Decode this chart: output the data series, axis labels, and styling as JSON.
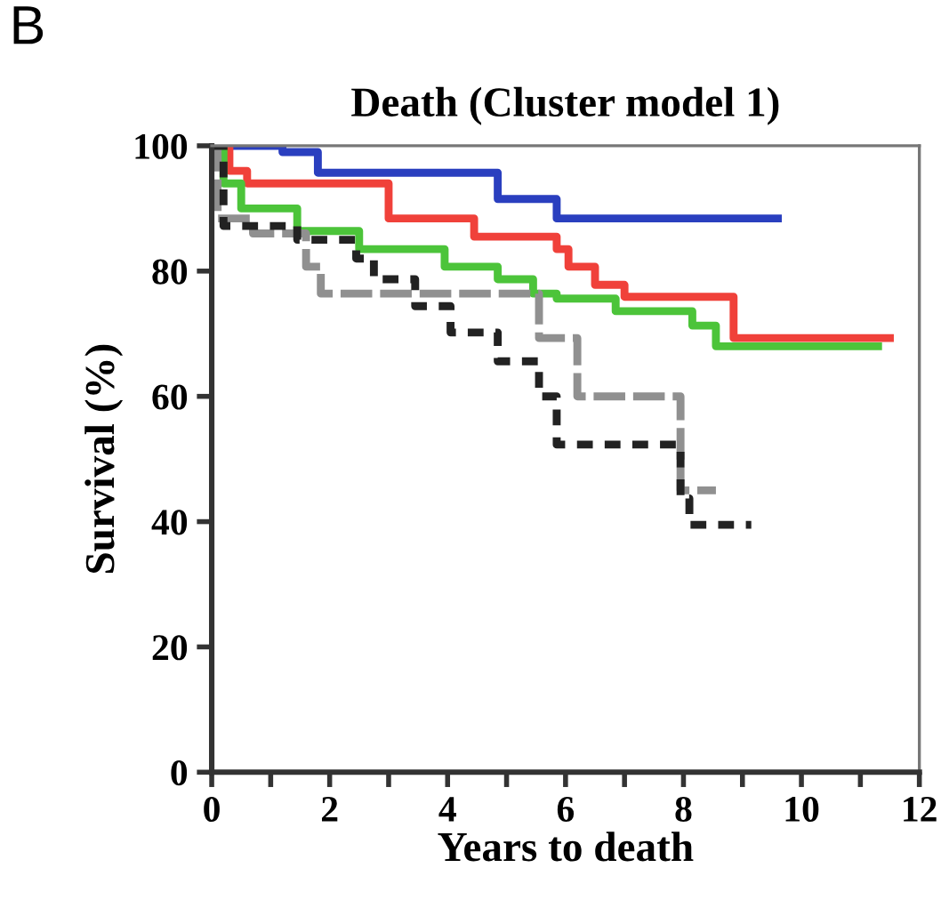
{
  "chart_data": {
    "type": "step",
    "title": "Death (Cluster model 1)",
    "xlabel": "Years to death",
    "ylabel": "Survival (%)",
    "annotations": [
      "B"
    ],
    "xlim": [
      0,
      12
    ],
    "ylim": [
      0,
      100
    ],
    "xticks": [
      0,
      {
        "value": 1,
        "label": null
      },
      2,
      {
        "value": 3,
        "label": null
      },
      4,
      {
        "value": 5,
        "label": null
      },
      6,
      {
        "value": 7,
        "label": null
      },
      8,
      {
        "value": 9,
        "label": null
      },
      10,
      {
        "value": 11,
        "label": null
      },
      12
    ],
    "yticks": [
      0,
      20,
      40,
      60,
      80,
      100
    ],
    "grid": false,
    "legend": false,
    "marker": "none",
    "series": [
      {
        "color": "#2a3fbf",
        "line_style": "solid",
        "x": [
          0,
          1.2,
          1.8,
          4.85,
          5.85,
          9.6
        ],
        "values": [
          100,
          99,
          95.7,
          91.5,
          88.4,
          88.4
        ]
      },
      {
        "color": "#f0413a",
        "line_style": "solid",
        "x": [
          0,
          0.3,
          0.6,
          3.0,
          4.45,
          5.85,
          6.05,
          6.5,
          7.0,
          8.85,
          11.5
        ],
        "values": [
          100,
          96,
          94,
          88.4,
          85.5,
          83.5,
          80.7,
          77.8,
          75.9,
          69.3,
          69.3
        ]
      },
      {
        "color": "#4cc43a",
        "line_style": "solid",
        "x": [
          0,
          0.2,
          0.5,
          1.45,
          2.5,
          3.95,
          4.85,
          5.45,
          5.85,
          6.85,
          8.15,
          8.55,
          11.3
        ],
        "values": [
          100,
          94,
          90,
          86.4,
          83.5,
          80.7,
          78.7,
          76.4,
          75.6,
          73.6,
          71.3,
          68,
          68
        ]
      },
      {
        "color": "#909090",
        "line_style": "dashed",
        "x": [
          0,
          0.1,
          0.7,
          1.6,
          1.85,
          5.55,
          6.2,
          7.95,
          8.55
        ],
        "values": [
          100,
          88.4,
          86,
          80.7,
          76.4,
          69.3,
          60,
          45,
          45
        ]
      },
      {
        "color": "#222222",
        "line_style": "dotted",
        "x": [
          0,
          0.2,
          1.45,
          2.45,
          2.75,
          3.45,
          4.05,
          4.85,
          5.55,
          5.85,
          7.95,
          8.1,
          9.15
        ],
        "values": [
          100,
          87.2,
          85,
          82,
          78.7,
          74.4,
          70.2,
          65.6,
          60,
          52.3,
          43.7,
          39.5,
          39.5
        ]
      }
    ]
  }
}
